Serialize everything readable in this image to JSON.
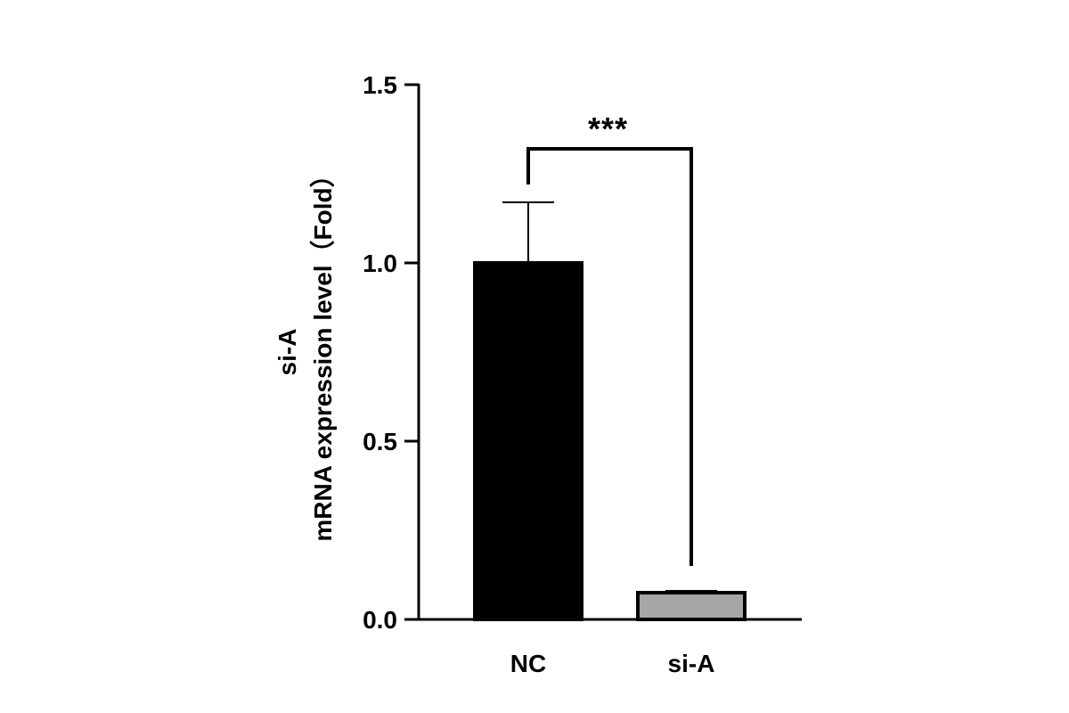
{
  "chart_data": {
    "type": "bar",
    "categories": [
      "NC",
      "si-A"
    ],
    "values": [
      1.0,
      0.075
    ],
    "errors": [
      0.17,
      0.005
    ],
    "bar_colors": [
      "#000000",
      "#a6a6a6"
    ],
    "bar_edge_color": "#000000",
    "ylabel_lines": [
      "si-A",
      "mRNA expression level（Fold）"
    ],
    "xlabel": "",
    "ylim": [
      0,
      1.5
    ],
    "yticks": [
      0.0,
      0.5,
      1.0,
      1.5
    ],
    "ytick_labels": [
      "0.0",
      "0.5",
      "1.0",
      "1.5"
    ],
    "grid": false,
    "significance": {
      "label": "***",
      "between": [
        "NC",
        "si-A"
      ],
      "y_level": 1.32,
      "left_end": 1.22,
      "right_end": 0.15
    }
  }
}
